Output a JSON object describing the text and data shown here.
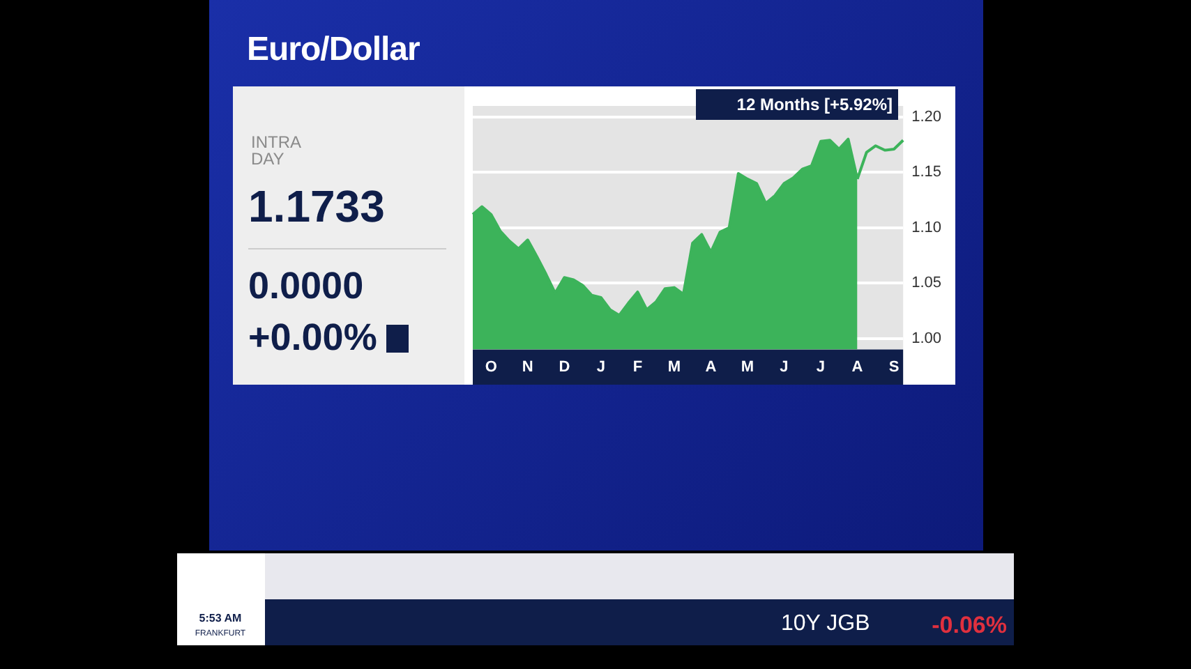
{
  "chart_data": {
    "type": "area",
    "title": "Euro/Dollar",
    "subtitle": "12 Months [+5.92%]",
    "annotations": [
      "INTRA DAY",
      "1.1733",
      "0.0000",
      "+0.00%",
      "5:53 AM",
      "FRANKFURT",
      "10Y JGB",
      "-0.06%"
    ],
    "categories": [
      null,
      null,
      "O",
      null,
      null,
      null,
      "N",
      null,
      null,
      null,
      "D",
      null,
      null,
      null,
      "J",
      null,
      null,
      null,
      "F",
      null,
      null,
      null,
      "M",
      null,
      null,
      null,
      "A",
      null,
      null,
      null,
      "M",
      null,
      null,
      null,
      "J",
      null,
      null,
      null,
      "J",
      null,
      null,
      null,
      "A",
      null,
      null,
      null,
      "S",
      null
    ],
    "series": [
      {
        "color": "#3cb35a",
        "values": [
          1.112,
          1.119,
          1.112,
          1.097,
          1.088,
          1.081,
          1.089,
          1.074,
          1.058,
          1.041,
          1.055,
          1.053,
          1.048,
          1.039,
          1.037,
          1.026,
          1.021,
          1.032,
          1.042,
          1.026,
          1.033,
          1.045,
          1.046,
          1.04,
          1.086,
          1.094,
          1.078,
          1.096,
          1.1,
          1.149,
          1.144,
          1.14,
          1.122,
          1.129,
          1.14,
          1.145,
          1.153,
          1.156,
          1.178,
          1.179,
          1.171,
          1.18,
          1.144,
          null,
          null,
          null,
          null,
          null
        ]
      },
      {
        "type": "line",
        "color": "#3cb35a",
        "values": [
          null,
          null,
          null,
          null,
          null,
          null,
          null,
          null,
          null,
          null,
          null,
          null,
          null,
          null,
          null,
          null,
          null,
          null,
          null,
          null,
          null,
          null,
          null,
          null,
          null,
          null,
          null,
          null,
          null,
          null,
          null,
          null,
          null,
          null,
          null,
          null,
          null,
          null,
          null,
          null,
          null,
          null,
          1.144,
          1.168,
          1.174,
          1.17,
          1.171,
          1.179
        ]
      }
    ],
    "ylim": [
      0.99,
      1.21
    ],
    "yticks": [
      {
        "value": 1,
        "label": "1.00"
      },
      {
        "value": 1.05,
        "label": "1.05"
      },
      {
        "value": 1.1,
        "label": "1.10"
      },
      {
        "value": 1.15,
        "label": "1.15"
      },
      {
        "value": 1.2,
        "label": "1.20"
      }
    ],
    "grid": "y",
    "legend": false,
    "marker": "none",
    "line_style": "solid"
  }
}
